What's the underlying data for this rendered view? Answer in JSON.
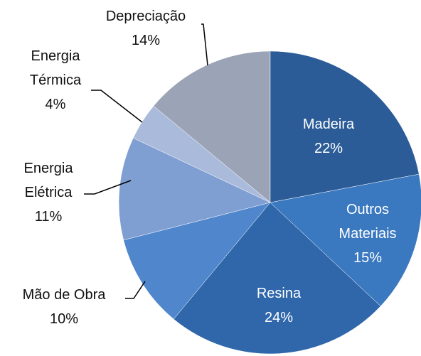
{
  "chart_data": {
    "type": "pie",
    "categories": [
      "Madeira",
      "Outros Materiais",
      "Resina",
      "Mão de Obra",
      "Energia Elétrica",
      "Energia Térmica",
      "Depreciação"
    ],
    "values": [
      22,
      15,
      24,
      10,
      11,
      4,
      14
    ],
    "value_labels": [
      "22%",
      "15%",
      "24%",
      "10%",
      "11%",
      "4%",
      "14%"
    ],
    "colors": [
      "#2b5c97",
      "#3a78c0",
      "#2f67aa",
      "#4f86cc",
      "#7f9ed2",
      "#a9badb",
      "#9ba4b6"
    ]
  }
}
